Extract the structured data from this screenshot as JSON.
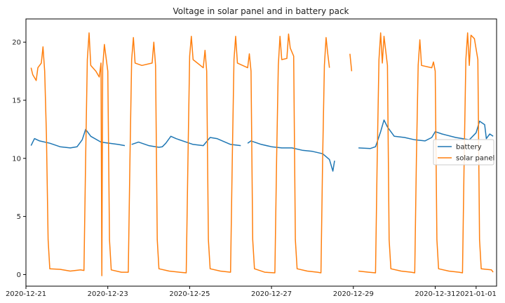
{
  "chart_data": {
    "type": "line",
    "title": "Voltage in solar panel and in battery pack",
    "xlabel": "",
    "ylabel": "",
    "xlim": [
      "2020-12-21T00:00",
      "2021-01-01T12:00"
    ],
    "ylim": [
      -1,
      22
    ],
    "x_ticks": [
      "2020-12-21",
      "2020-12-23",
      "2020-12-25",
      "2020-12-27",
      "2020-12-29",
      "2020-12-31",
      "2021-01-01"
    ],
    "y_ticks": [
      0,
      5,
      10,
      15,
      20
    ],
    "grid": false,
    "legend_position": "right",
    "series": [
      {
        "name": "battery",
        "color": "#1f77b4",
        "points": [
          [
            "2020-12-21T03:00",
            11.1
          ],
          [
            "2020-12-21T04:00",
            11.4
          ],
          [
            "2020-12-21T05:00",
            11.7
          ],
          [
            "2020-12-21T08:00",
            11.5
          ],
          [
            "2020-12-21T14:00",
            11.3
          ],
          [
            "2020-12-21T20:00",
            11.0
          ],
          [
            "2020-12-22T02:00",
            10.9
          ],
          [
            "2020-12-22T06:00",
            11.0
          ],
          [
            "2020-12-22T09:00",
            11.6
          ],
          [
            "2020-12-22T11:00",
            12.5
          ],
          [
            "2020-12-22T14:00",
            11.9
          ],
          [
            "2020-12-22T20:00",
            11.4
          ],
          [
            "2020-12-23T06:00",
            11.2
          ],
          [
            "2020-12-23T10:00",
            11.1
          ],
          [
            "2020-12-23T12:00",
            null
          ],
          [
            "2020-12-23T14:00",
            11.2
          ],
          [
            "2020-12-23T18:00",
            11.4
          ],
          [
            "2020-12-24T00:00",
            11.1
          ],
          [
            "2020-12-24T06:00",
            10.95
          ],
          [
            "2020-12-24T08:00",
            11.0
          ],
          [
            "2020-12-24T10:00",
            11.3
          ],
          [
            "2020-12-24T13:00",
            11.9
          ],
          [
            "2020-12-24T16:00",
            11.7
          ],
          [
            "2020-12-25T02:00",
            11.2
          ],
          [
            "2020-12-25T08:00",
            11.1
          ],
          [
            "2020-12-25T12:00",
            11.8
          ],
          [
            "2020-12-25T16:00",
            11.7
          ],
          [
            "2020-12-26T00:00",
            11.2
          ],
          [
            "2020-12-26T06:00",
            11.1
          ],
          [
            "2020-12-26T07:00",
            null
          ],
          [
            "2020-12-26T10:00",
            11.3
          ],
          [
            "2020-12-26T12:00",
            11.5
          ],
          [
            "2020-12-26T18:00",
            11.2
          ],
          [
            "2020-12-27T00:00",
            11.0
          ],
          [
            "2020-12-27T06:00",
            10.9
          ],
          [
            "2020-12-27T12:00",
            10.9
          ],
          [
            "2020-12-27T18:00",
            10.7
          ],
          [
            "2020-12-28T00:00",
            10.6
          ],
          [
            "2020-12-28T06:00",
            10.4
          ],
          [
            "2020-12-28T10:00",
            9.9
          ],
          [
            "2020-12-28T12:00",
            8.9
          ],
          [
            "2020-12-28T13:00",
            9.8
          ],
          [
            "2020-12-28T15:00",
            null
          ],
          [
            "2020-12-28T16:00",
            11.1
          ],
          [
            "2020-12-28T18:00",
            null
          ],
          [
            "2020-12-28T21:00",
            11.0
          ],
          [
            "2020-12-28T23:00",
            null
          ],
          [
            "2020-12-29T03:00",
            10.9
          ],
          [
            "2020-12-29T10:00",
            10.85
          ],
          [
            "2020-12-29T13:00",
            11.0
          ],
          [
            "2020-12-29T16:00",
            12.3
          ],
          [
            "2020-12-29T18:00",
            13.3
          ],
          [
            "2020-12-29T20:00",
            12.7
          ],
          [
            "2020-12-30T00:00",
            11.9
          ],
          [
            "2020-12-30T06:00",
            11.8
          ],
          [
            "2020-12-30T12:00",
            11.6
          ],
          [
            "2020-12-30T18:00",
            11.5
          ],
          [
            "2020-12-30T22:00",
            11.8
          ],
          [
            "2020-12-31T00:00",
            12.3
          ],
          [
            "2020-12-31T04:00",
            12.1
          ],
          [
            "2020-12-31T12:00",
            11.8
          ],
          [
            "2020-12-31T20:00",
            11.6
          ],
          [
            "2021-01-01T00:00",
            12.2
          ],
          [
            "2021-01-01T02:00",
            13.2
          ],
          [
            "2021-01-01T05:00",
            12.9
          ],
          [
            "2021-01-01T06:00",
            11.7
          ],
          [
            "2021-01-01T08:00",
            12.1
          ],
          [
            "2021-01-01T10:00",
            11.9
          ]
        ]
      },
      {
        "name": "solar panel",
        "color": "#ff7f0e",
        "points": [
          [
            "2020-12-21T03:00",
            17.8
          ],
          [
            "2020-12-21T04:00",
            17.2
          ],
          [
            "2020-12-21T06:00",
            16.7
          ],
          [
            "2020-12-21T07:00",
            17.8
          ],
          [
            "2020-12-21T09:00",
            18.2
          ],
          [
            "2020-12-21T10:00",
            19.6
          ],
          [
            "2020-12-21T11:00",
            17.5
          ],
          [
            "2020-12-21T12:00",
            12.0
          ],
          [
            "2020-12-21T13:00",
            3.0
          ],
          [
            "2020-12-21T14:00",
            0.5
          ],
          [
            "2020-12-21T20:00",
            0.45
          ],
          [
            "2020-12-22T02:00",
            0.3
          ],
          [
            "2020-12-22T08:00",
            0.4
          ],
          [
            "2020-12-22T10:00",
            0.35
          ],
          [
            "2020-12-22T11:00",
            10.0
          ],
          [
            "2020-12-22T12:00",
            18.5
          ],
          [
            "2020-12-22T13:00",
            20.8
          ],
          [
            "2020-12-22T14:00",
            18.0
          ],
          [
            "2020-12-22T17:00",
            17.5
          ],
          [
            "2020-12-22T19:00",
            17.0
          ],
          [
            "2020-12-22T20:00",
            18.2
          ],
          [
            "2020-12-22T20:30",
            -0.1
          ],
          [
            "2020-12-22T21:00",
            17.8
          ],
          [
            "2020-12-22T22:00",
            19.8
          ],
          [
            "2020-12-23T00:00",
            17.5
          ],
          [
            "2020-12-23T01:00",
            3.0
          ],
          [
            "2020-12-23T02:00",
            0.4
          ],
          [
            "2020-12-23T08:00",
            0.2
          ],
          [
            "2020-12-23T12:00",
            0.2
          ],
          [
            "2020-12-23T13:00",
            10.0
          ],
          [
            "2020-12-23T14:00",
            18.5
          ],
          [
            "2020-12-23T15:00",
            20.4
          ],
          [
            "2020-12-23T16:00",
            18.2
          ],
          [
            "2020-12-23T20:00",
            18.0
          ],
          [
            "2020-12-24T02:00",
            18.2
          ],
          [
            "2020-12-24T03:00",
            20.0
          ],
          [
            "2020-12-24T04:00",
            18.0
          ],
          [
            "2020-12-24T05:00",
            3.0
          ],
          [
            "2020-12-24T06:00",
            0.5
          ],
          [
            "2020-12-24T12:00",
            0.3
          ],
          [
            "2020-12-24T18:00",
            0.2
          ],
          [
            "2020-12-24T22:00",
            0.15
          ],
          [
            "2020-12-24T23:00",
            10.0
          ],
          [
            "2020-12-25T00:00",
            18.8
          ],
          [
            "2020-12-25T01:00",
            20.5
          ],
          [
            "2020-12-25T02:00",
            18.5
          ],
          [
            "2020-12-25T08:00",
            17.8
          ],
          [
            "2020-12-25T09:00",
            19.3
          ],
          [
            "2020-12-25T10:00",
            17.5
          ],
          [
            "2020-12-25T11:00",
            3.0
          ],
          [
            "2020-12-25T12:00",
            0.5
          ],
          [
            "2020-12-25T18:00",
            0.3
          ],
          [
            "2020-12-26T00:00",
            0.2
          ],
          [
            "2020-12-26T01:00",
            10.0
          ],
          [
            "2020-12-26T02:00",
            18.5
          ],
          [
            "2020-12-26T03:00",
            20.5
          ],
          [
            "2020-12-26T04:00",
            18.2
          ],
          [
            "2020-12-26T10:00",
            17.8
          ],
          [
            "2020-12-26T11:00",
            19.0
          ],
          [
            "2020-12-26T12:00",
            17.5
          ],
          [
            "2020-12-26T13:00",
            3.0
          ],
          [
            "2020-12-26T14:00",
            0.5
          ],
          [
            "2020-12-26T20:00",
            0.2
          ],
          [
            "2020-12-27T02:00",
            0.15
          ],
          [
            "2020-12-27T03:00",
            10.0
          ],
          [
            "2020-12-27T04:00",
            18.0
          ],
          [
            "2020-12-27T05:00",
            20.5
          ],
          [
            "2020-12-27T06:00",
            18.5
          ],
          [
            "2020-12-27T09:00",
            18.6
          ],
          [
            "2020-12-27T10:00",
            20.7
          ],
          [
            "2020-12-27T11:00",
            19.5
          ],
          [
            "2020-12-27T13:00",
            18.8
          ],
          [
            "2020-12-27T14:00",
            3.0
          ],
          [
            "2020-12-27T15:00",
            0.5
          ],
          [
            "2020-12-27T21:00",
            0.3
          ],
          [
            "2020-12-28T03:00",
            0.2
          ],
          [
            "2020-12-28T05:00",
            0.15
          ],
          [
            "2020-12-28T06:00",
            10.0
          ],
          [
            "2020-12-28T07:00",
            18.0
          ],
          [
            "2020-12-28T08:00",
            20.4
          ],
          [
            "2020-12-28T09:00",
            19.0
          ],
          [
            "2020-12-28T10:00",
            17.8
          ],
          [
            "2020-12-28T11:00",
            null
          ],
          [
            "2020-12-28T22:00",
            19.0
          ],
          [
            "2020-12-28T23:00",
            17.5
          ],
          [
            "2020-12-29T00:00",
            null
          ],
          [
            "2020-12-29T03:00",
            0.3
          ],
          [
            "2020-12-29T09:00",
            0.2
          ],
          [
            "2020-12-29T13:00",
            0.15
          ],
          [
            "2020-12-29T14:00",
            10.0
          ],
          [
            "2020-12-29T15:00",
            18.5
          ],
          [
            "2020-12-29T16:00",
            20.8
          ],
          [
            "2020-12-29T17:00",
            18.2
          ],
          [
            "2020-12-29T18:00",
            20.5
          ],
          [
            "2020-12-29T20:00",
            18.0
          ],
          [
            "2020-12-29T21:00",
            3.0
          ],
          [
            "2020-12-29T22:00",
            0.5
          ],
          [
            "2020-12-30T04:00",
            0.3
          ],
          [
            "2020-12-30T10:00",
            0.2
          ],
          [
            "2020-12-30T12:00",
            0.15
          ],
          [
            "2020-12-30T13:00",
            10.0
          ],
          [
            "2020-12-30T14:00",
            18.0
          ],
          [
            "2020-12-30T15:00",
            20.2
          ],
          [
            "2020-12-30T16:00",
            18.0
          ],
          [
            "2020-12-30T22:00",
            17.8
          ],
          [
            "2020-12-30T23:00",
            18.3
          ],
          [
            "2020-12-31T00:00",
            17.5
          ],
          [
            "2020-12-31T01:00",
            3.0
          ],
          [
            "2020-12-31T02:00",
            0.5
          ],
          [
            "2020-12-31T08:00",
            0.3
          ],
          [
            "2020-12-31T14:00",
            0.2
          ],
          [
            "2020-12-31T16:00",
            0.15
          ],
          [
            "2020-12-31T17:00",
            10.0
          ],
          [
            "2020-12-31T18:00",
            18.5
          ],
          [
            "2020-12-31T19:00",
            20.8
          ],
          [
            "2020-12-31T20:00",
            18.0
          ],
          [
            "2020-12-31T21:00",
            20.6
          ],
          [
            "2020-12-31T23:00",
            20.3
          ],
          [
            "2021-01-01T01:00",
            18.5
          ],
          [
            "2021-01-01T02:00",
            3.0
          ],
          [
            "2021-01-01T03:00",
            0.5
          ],
          [
            "2021-01-01T09:00",
            0.4
          ],
          [
            "2021-01-01T10:00",
            0.2
          ]
        ]
      }
    ]
  }
}
